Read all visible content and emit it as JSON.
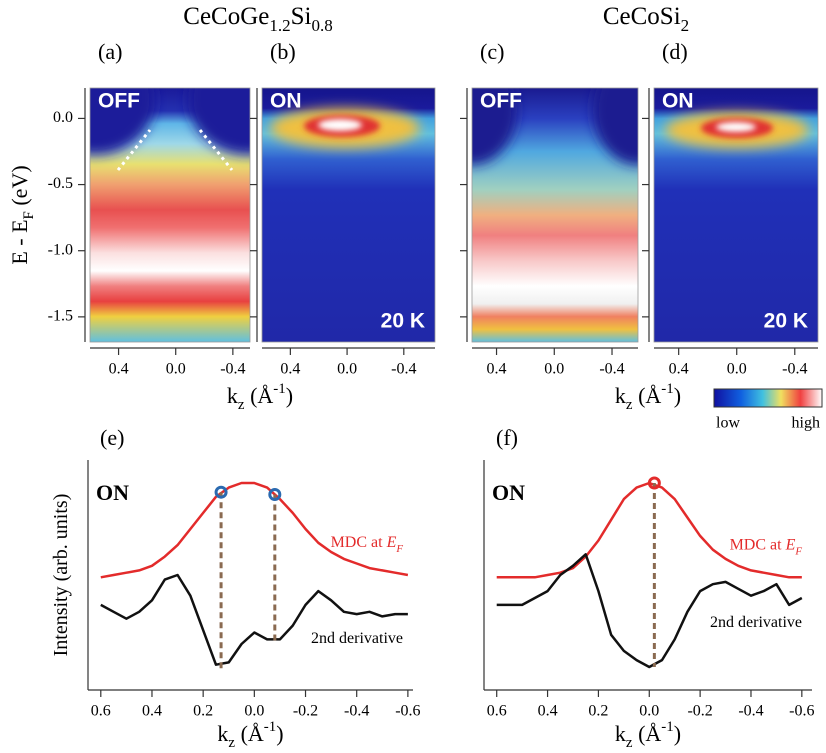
{
  "chart_data": [
    {
      "type": "heatmap",
      "panel": "(a)",
      "mode": "OFF",
      "title": [
        {
          "text": "CeCoGe"
        },
        {
          "text": "1.2",
          "sub": true
        },
        {
          "text": "Si"
        },
        {
          "text": "0.8",
          "sub": true
        }
      ],
      "ylabel": [
        {
          "text": "E - E"
        },
        {
          "text": "F",
          "sub": true
        },
        {
          "text": " (eV)"
        }
      ],
      "xlabel": [
        {
          "text": "k"
        },
        {
          "text": "z",
          "sub": true
        },
        {
          "text": " (Å"
        },
        {
          "text": "-1",
          "sup": true
        },
        {
          "text": ")"
        }
      ],
      "xlim": [
        0.6,
        -0.52
      ],
      "xticks": [
        0.4,
        {
          "value": 0,
          "label": "0.0"
        },
        -0.4
      ],
      "ylim": [
        -1.69,
        0.23
      ],
      "yticks": [
        {
          "value": 0,
          "label": "0.0"
        },
        -0.5,
        {
          "value": -1,
          "label": "-1.0"
        },
        -1.5
      ]
    },
    {
      "type": "heatmap",
      "panel": "(b)",
      "mode": "ON",
      "temperature": "20 K",
      "xlim": [
        0.6,
        -0.62
      ],
      "xticks": [
        0.4,
        {
          "value": 0,
          "label": "0.0"
        },
        -0.4
      ],
      "ylim": [
        -1.69,
        0.23
      ],
      "yticks": [
        0,
        -0.5,
        -1,
        -1.5
      ]
    },
    {
      "type": "heatmap",
      "panel": "(c)",
      "mode": "OFF",
      "title": [
        {
          "text": "CeCoSi"
        },
        {
          "text": "2",
          "sub": true
        }
      ],
      "xlabel": [
        {
          "text": "k"
        },
        {
          "text": "z",
          "sub": true
        },
        {
          "text": " (Å"
        },
        {
          "text": "-1",
          "sup": true
        },
        {
          "text": ")"
        }
      ],
      "xlim": [
        0.57,
        -0.58
      ],
      "xticks": [
        0.4,
        {
          "value": 0,
          "label": "0.0"
        },
        -0.4
      ],
      "ylim": [
        -1.69,
        0.23
      ],
      "yticks": [
        0,
        -0.5,
        -1,
        -1.5
      ]
    },
    {
      "type": "heatmap",
      "panel": "(d)",
      "mode": "ON",
      "temperature": "20 K",
      "xlim": [
        0.57,
        -0.56
      ],
      "xticks": [
        0.4,
        {
          "value": 0,
          "label": "0.0"
        },
        -0.4
      ],
      "ylim": [
        -1.69,
        0.23
      ],
      "yticks": [
        0,
        -0.5,
        -1,
        -1.5
      ]
    },
    {
      "type": "line",
      "panel": "(e)",
      "mode": "ON",
      "ylabel": [
        {
          "text": "Intensity (arb. units)"
        }
      ],
      "xlabel": [
        {
          "text": "k"
        },
        {
          "text": "z",
          "sub": true
        },
        {
          "text": " (Å"
        },
        {
          "text": "-1",
          "sup": true
        },
        {
          "text": ")"
        }
      ],
      "xlim": [
        0.65,
        -0.62
      ],
      "ylim": [
        0,
        100
      ],
      "xticks": [
        0.6,
        0.4,
        0.2,
        {
          "value": 0,
          "label": "0.0"
        },
        -0.2,
        -0.4,
        -0.6
      ],
      "x": [
        0.6,
        0.55,
        0.5,
        0.45,
        0.4,
        0.35,
        0.3,
        0.25,
        0.2,
        0.15,
        0.1,
        0.05,
        0,
        -0.05,
        -0.1,
        -0.15,
        -0.2,
        -0.25,
        -0.3,
        -0.35,
        -0.4,
        -0.45,
        -0.5,
        -0.55,
        -0.6
      ],
      "series": [
        {
          "label": [
            {
              "text": "MDC at "
            },
            {
              "text": "E",
              "italic": true
            },
            {
              "text": "F",
              "italic": true,
              "sub": true
            }
          ],
          "color": "#e32b2b",
          "values": [
            49,
            50,
            51,
            52,
            54,
            58,
            63,
            70,
            77,
            84,
            88,
            90,
            90,
            88,
            83,
            77,
            70,
            64,
            60,
            57,
            55,
            53,
            52,
            51,
            50
          ]
        },
        {
          "label": [
            {
              "text": "2nd derivative"
            }
          ],
          "color": "#111111",
          "values": [
            37,
            34,
            31,
            34,
            39,
            48,
            50,
            41,
            26,
            11,
            12,
            20,
            25,
            22,
            22,
            28,
            37,
            43,
            39,
            34,
            33,
            34,
            32,
            33,
            33
          ]
        }
      ],
      "marker_color": "#2a6ab0",
      "markers": [
        {
          "x": 0.13,
          "y": 86,
          "y_low": 9
        },
        {
          "x": -0.08,
          "y": 85,
          "y_low": 21
        }
      ]
    },
    {
      "type": "line",
      "panel": "(f)",
      "mode": "ON",
      "xlabel": [
        {
          "text": "k"
        },
        {
          "text": "z",
          "sub": true
        },
        {
          "text": " (Å"
        },
        {
          "text": "-1",
          "sup": true
        },
        {
          "text": ")"
        }
      ],
      "xlim": [
        0.65,
        -0.64
      ],
      "ylim": [
        0,
        100
      ],
      "xticks": [
        0.6,
        0.4,
        0.2,
        {
          "value": 0,
          "label": "0.0"
        },
        -0.2,
        -0.4,
        -0.6
      ],
      "x": [
        0.6,
        0.55,
        0.5,
        0.45,
        0.4,
        0.35,
        0.3,
        0.25,
        0.2,
        0.15,
        0.1,
        0.05,
        0,
        -0.05,
        -0.1,
        -0.15,
        -0.2,
        -0.25,
        -0.3,
        -0.35,
        -0.4,
        -0.45,
        -0.5,
        -0.55,
        -0.6
      ],
      "series": [
        {
          "label": [
            {
              "text": "MDC at "
            },
            {
              "text": "E",
              "italic": true
            },
            {
              "text": "F",
              "italic": true,
              "sub": true
            }
          ],
          "color": "#e32b2b",
          "values": [
            49,
            49,
            49,
            49,
            50,
            51,
            53,
            58,
            65,
            74,
            83,
            88,
            90,
            88,
            83,
            75,
            67,
            61,
            57,
            54,
            52,
            51,
            50,
            49,
            49
          ]
        },
        {
          "label": [
            {
              "text": "2nd derivative"
            }
          ],
          "color": "#111111",
          "values": [
            37,
            37,
            37,
            40,
            43,
            50,
            54,
            59,
            43,
            24,
            17,
            13,
            10,
            13,
            22,
            34,
            43,
            46,
            47,
            44,
            41,
            43,
            46,
            37,
            40
          ]
        }
      ],
      "marker_color": "#e32b2b",
      "markers": [
        {
          "x": -0.02,
          "y": 90,
          "y_low": 10
        }
      ]
    }
  ],
  "colorbar": {
    "low": "low",
    "high": "high"
  }
}
